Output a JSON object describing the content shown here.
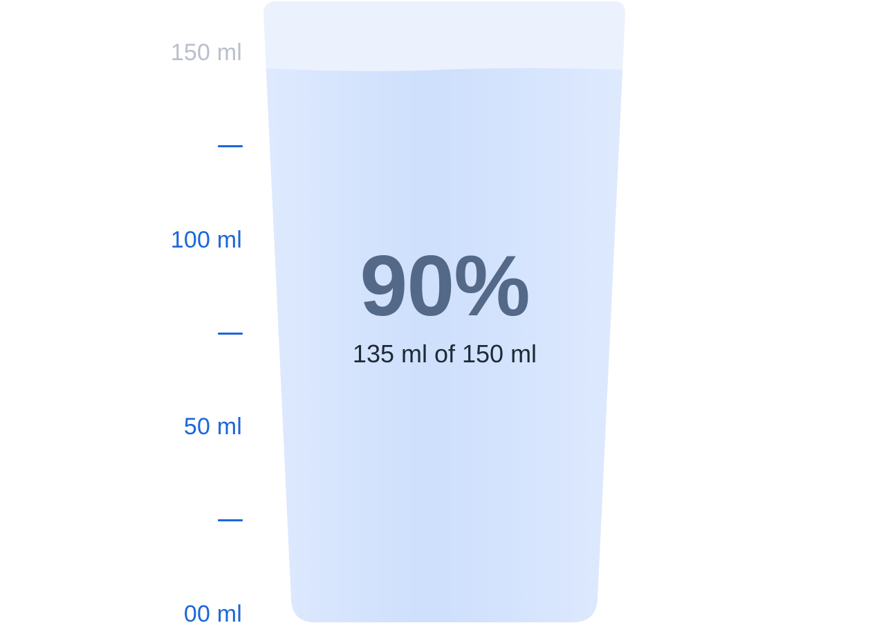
{
  "gauge": {
    "fill_fraction": 0.9,
    "percent_label": "90%",
    "amount_label": "135 ml of 150 ml",
    "current_ml": 135,
    "capacity_ml": 150
  },
  "scale": {
    "labels": [
      {
        "text": "150 ml",
        "value": 150,
        "state": "inactive"
      },
      {
        "text": "100 ml",
        "value": 100,
        "state": "active"
      },
      {
        "text": "50 ml",
        "value": 50,
        "state": "active"
      },
      {
        "text": "00 ml",
        "value": 0,
        "state": "active"
      }
    ],
    "ticks": [
      125,
      75,
      25
    ]
  },
  "colors": {
    "active_label": "#1a66d9",
    "inactive_label": "#b9bfca",
    "tick": "#1a66d9",
    "glass_empty": "#ebf2fd",
    "water_light": "#dfeafd",
    "water_mid": "#cfe0fd",
    "percent_text": "#546887",
    "amount_text": "#1f2a36"
  }
}
